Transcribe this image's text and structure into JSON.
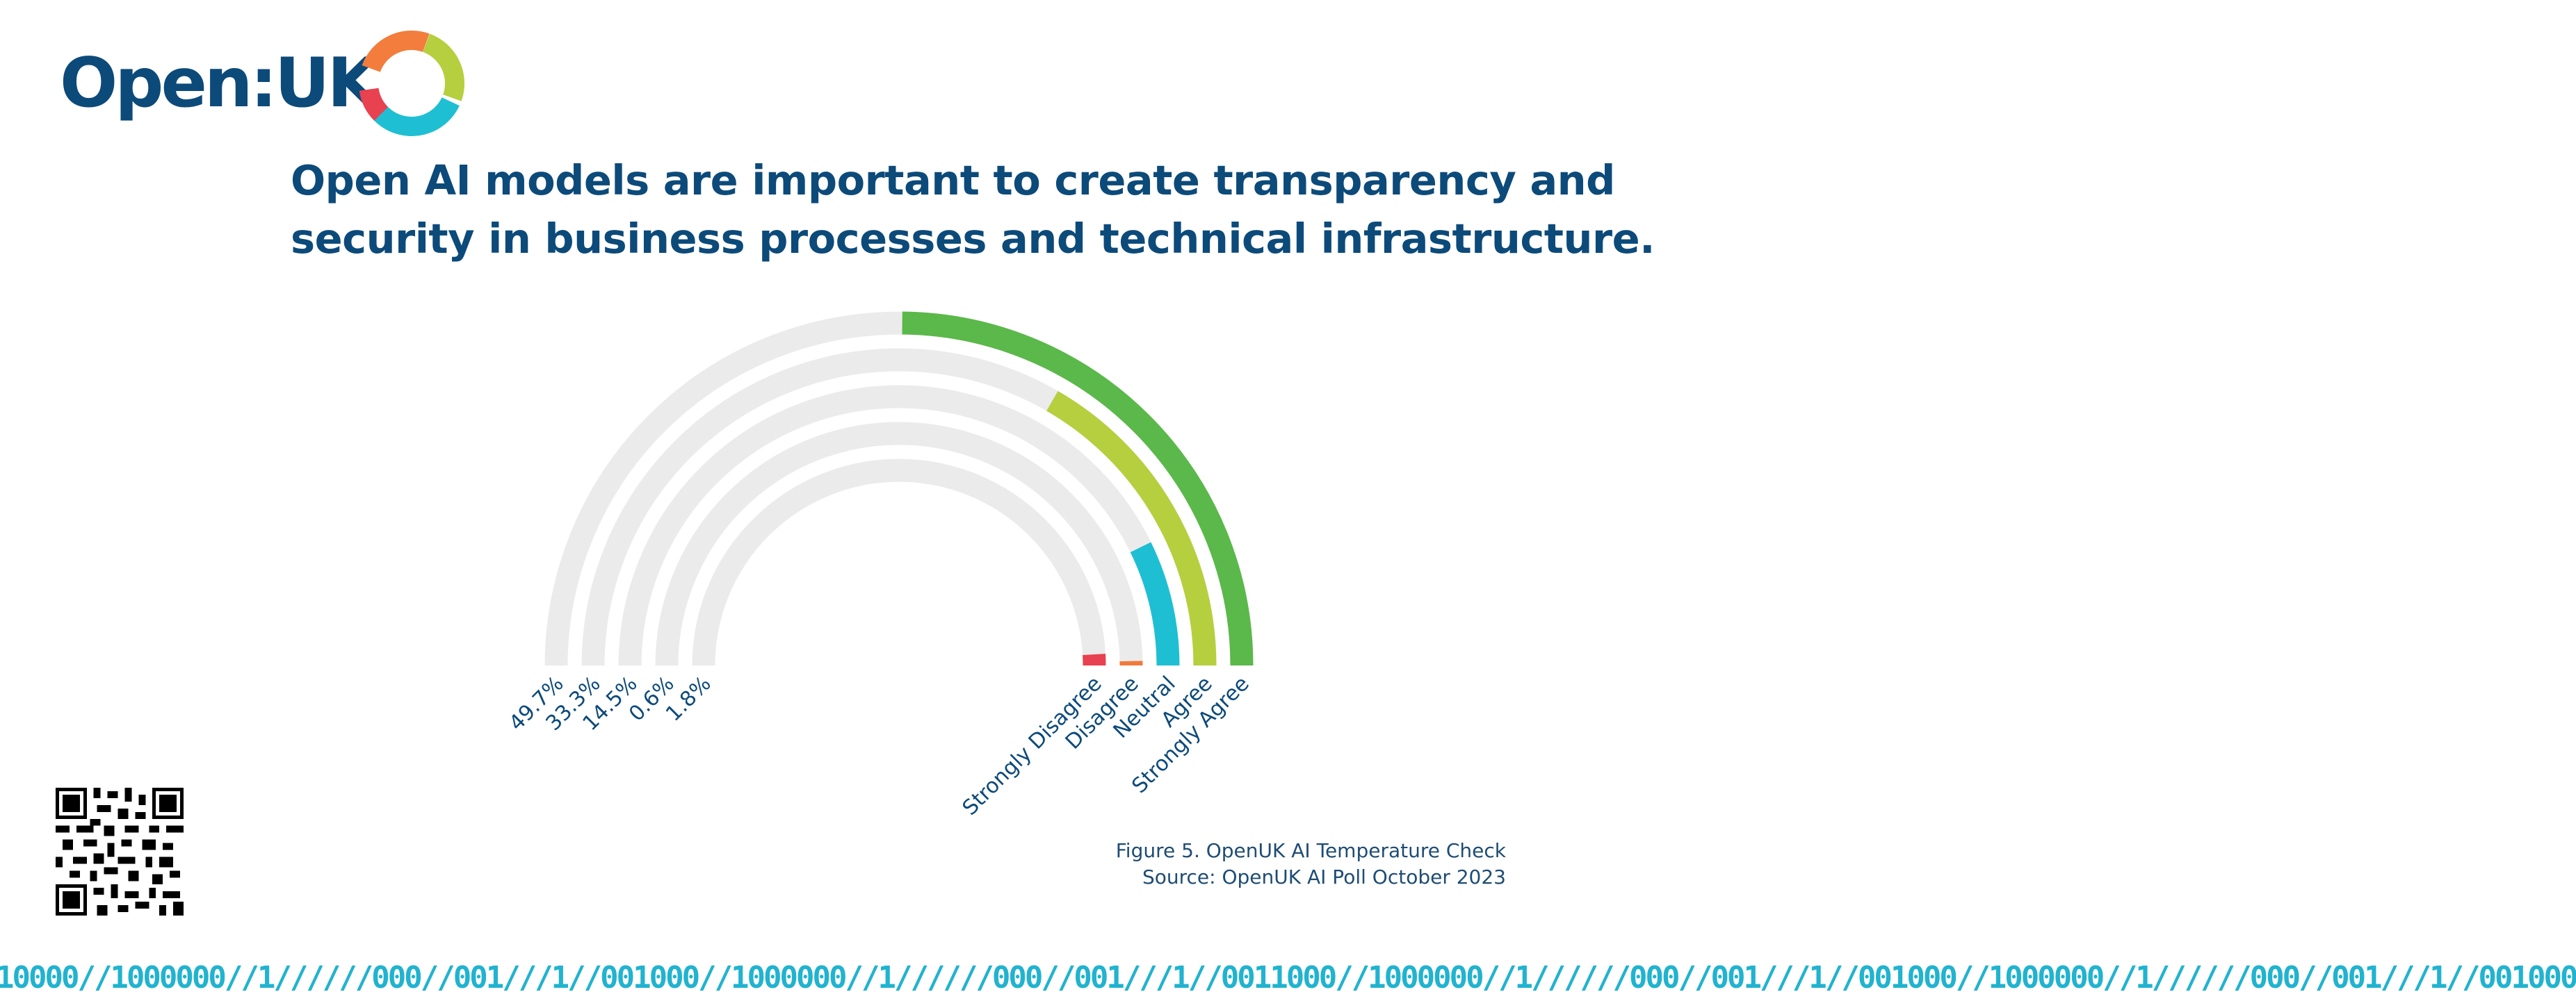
{
  "logo": {
    "text": "Open:UK"
  },
  "headline": {
    "line1": "Open AI models are important to create transparency and",
    "line2": "security in business processes and technical infrastructure."
  },
  "caption": {
    "figure": "Figure 5. OpenUK AI Temperature Check",
    "source": "Source: OpenUK AI Poll October 2023"
  },
  "binary_strip": "10000∕∕1000000∕∕1∕∕∕∕∕∕000∕∕001∕∕∕1∕∕001000∕∕1000000∕∕1∕∕∕∕∕∕000∕∕001∕∕∕1∕∕0011000∕∕1000000∕∕1∕∕∕∕∕∕000∕∕001∕∕∕1∕∕001000∕∕1000000∕∕1∕∕∕∕∕∕000∕∕001∕∕∕1∕∕001000",
  "colors": {
    "navy": "#0c4a7a",
    "track": "#ebebeb",
    "strongly_agree": "#5bb84a",
    "agree": "#b5cf3e",
    "neutral": "#1fbfd3",
    "disagree": "#f07a3c",
    "strongly_disagree": "#e8414f",
    "binary": "#21b3cf"
  },
  "chart_data": {
    "type": "radial-bar",
    "title": "",
    "unit": "%",
    "max": 100,
    "categories": [
      "Strongly Agree",
      "Agree",
      "Neutral",
      "Disagree",
      "Strongly Disagree"
    ],
    "values": [
      49.7,
      33.3,
      14.5,
      0.6,
      1.8
    ],
    "value_labels": [
      "49.7%",
      "33.3%",
      "14.5%",
      "0.6%",
      "1.8%"
    ],
    "colors": [
      "#5bb84a",
      "#b5cf3e",
      "#1fbfd3",
      "#f07a3c",
      "#e8414f"
    ],
    "arc": "semicircle",
    "ring_order": "outer-to-inner"
  }
}
